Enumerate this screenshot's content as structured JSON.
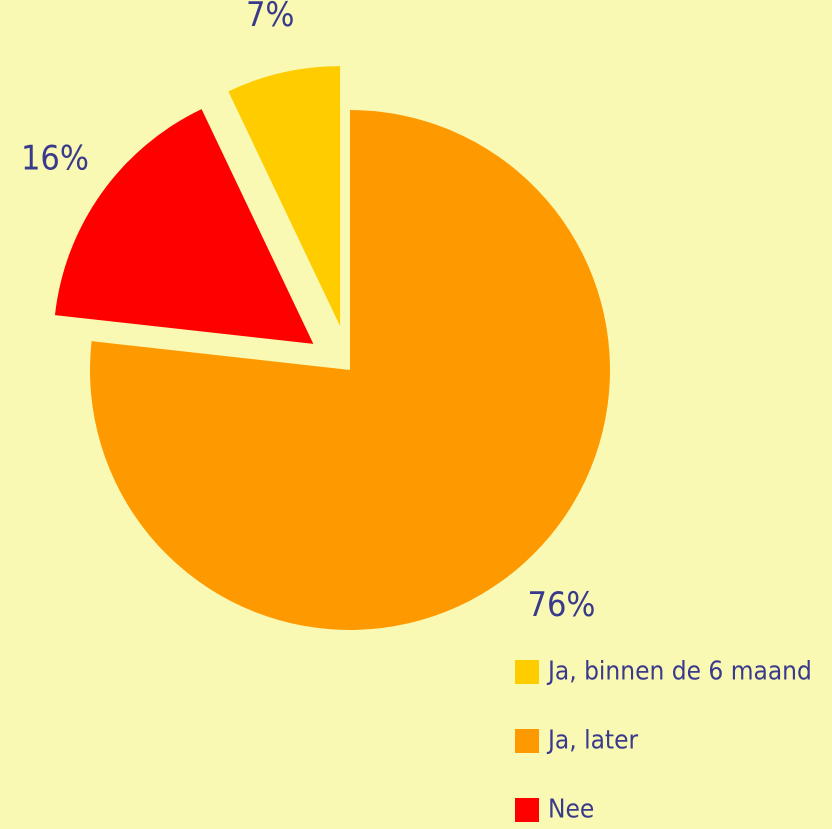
{
  "chart_data": {
    "type": "pie",
    "categories": [
      "Ja, binnen de 6 maand",
      "Ja, later",
      "Nee"
    ],
    "values": [
      7,
      76,
      16
    ],
    "value_labels": [
      "7%",
      "76%",
      "16%"
    ],
    "colors": [
      "#ffcc00",
      "#ff9900",
      "#ff0000"
    ],
    "explode": [
      true,
      false,
      true
    ],
    "legend": "bottom-right"
  }
}
